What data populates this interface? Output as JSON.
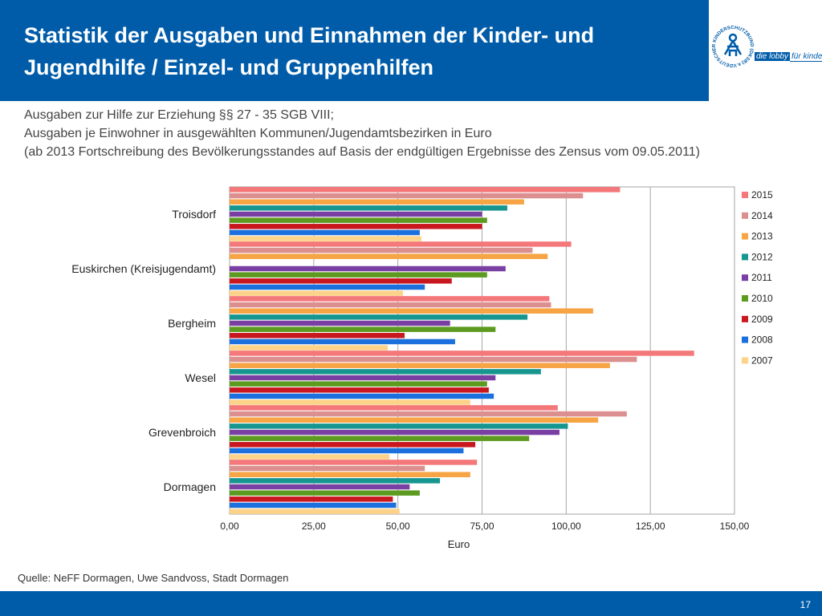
{
  "header": {
    "title": "Statistik der Ausgaben und Einnahmen der Kinder- und Jugendhilfe / Einzel- und Gruppenhilfen",
    "logo": {
      "icon": "dksb-logo-icon",
      "ring_text": "DEUTSCHER KINDERSCHUTZBUND (DKSB) e.V.",
      "tagline_a": "die lobby",
      "tagline_b": "für kinder"
    }
  },
  "subtitle": {
    "line1": "Ausgaben zur Hilfe zur Erziehung §§ 27 - 35 SGB VIII;",
    "line2": "Ausgaben je Einwohner in ausgewählten Kommunen/Jugendamtsbezirken in Euro",
    "line3": "(ab 2013 Fortschreibung des Bevölkerungsstandes auf Basis der endgültigen Ergebnisse des Zensus vom 09.05.2011)"
  },
  "chart_data": {
    "type": "bar",
    "orientation": "horizontal",
    "categories": [
      "Troisdorf",
      "Euskirchen (Kreisjugendamt)",
      "Bergheim",
      "Wesel",
      "Grevenbroich",
      "Dormagen"
    ],
    "series": [
      {
        "name": "2015",
        "color": "#f4777a",
        "values": [
          116,
          101.5,
          95,
          138,
          97.5,
          73.5
        ]
      },
      {
        "name": "2014",
        "color": "#db8f8f",
        "values": [
          105,
          90,
          95.5,
          121,
          118,
          58
        ]
      },
      {
        "name": "2013",
        "color": "#f6a444",
        "values": [
          87.5,
          94.5,
          108,
          113,
          109.5,
          71.5
        ]
      },
      {
        "name": "2012",
        "color": "#16968f",
        "values": [
          82.5,
          0,
          88.5,
          92.5,
          100.5,
          62.5
        ]
      },
      {
        "name": "2011",
        "color": "#7a3fa3",
        "values": [
          75,
          82,
          65.5,
          79,
          98,
          53.5
        ]
      },
      {
        "name": "2010",
        "color": "#5d9b20",
        "values": [
          76.5,
          76.5,
          79,
          76.5,
          89,
          56.5
        ]
      },
      {
        "name": "2009",
        "color": "#c8171e",
        "values": [
          75,
          66,
          52,
          77,
          73,
          48.5
        ]
      },
      {
        "name": "2008",
        "color": "#1c70dd",
        "values": [
          56.5,
          58,
          67,
          78.5,
          69.5,
          49.5
        ]
      },
      {
        "name": "2007",
        "color": "#fdd38a",
        "values": [
          57,
          51.5,
          47,
          71.5,
          47.5,
          50.5
        ]
      }
    ],
    "xlim": [
      0,
      150
    ],
    "ticks": [
      "0,00",
      "25,00",
      "50,00",
      "75,00",
      "100,00",
      "125,00",
      "150,00"
    ],
    "xlabel": "Euro",
    "ylabel": "",
    "grid": true,
    "legend": "right"
  },
  "footer": {
    "source": "Quelle: NeFF Dormagen, Uwe Sandvoss, Stadt Dormagen",
    "page_number": "17"
  }
}
